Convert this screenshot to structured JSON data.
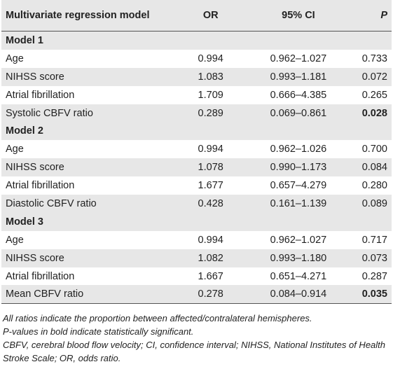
{
  "table": {
    "headers": [
      "Multivariate regression model",
      "OR",
      "95% CI",
      "P"
    ],
    "groups": [
      {
        "title": "Model 1",
        "rows": [
          {
            "label": "Age",
            "or": "0.994",
            "ci": "0.962–1.027",
            "p": "0.733",
            "p_bold": false
          },
          {
            "label": "NIHSS score",
            "or": "1.083",
            "ci": "0.993–1.181",
            "p": "0.072",
            "p_bold": false
          },
          {
            "label": "Atrial fibrillation",
            "or": "1.709",
            "ci": "0.666–4.385",
            "p": "0.265",
            "p_bold": false
          },
          {
            "label": "Systolic CBFV ratio",
            "or": "0.289",
            "ci": "0.069–0.861",
            "p": "0.028",
            "p_bold": true
          }
        ]
      },
      {
        "title": "Model 2",
        "rows": [
          {
            "label": "Age",
            "or": "0.994",
            "ci": "0.962–1.026",
            "p": "0.700",
            "p_bold": false
          },
          {
            "label": "NIHSS score",
            "or": "1.078",
            "ci": "0.990–1.173",
            "p": "0.084",
            "p_bold": false
          },
          {
            "label": "Atrial fibrillation",
            "or": "1.677",
            "ci": "0.657–4.279",
            "p": "0.280",
            "p_bold": false
          },
          {
            "label": "Diastolic CBFV ratio",
            "or": "0.428",
            "ci": "0.161–1.139",
            "p": "0.089",
            "p_bold": false
          }
        ]
      },
      {
        "title": "Model 3",
        "rows": [
          {
            "label": "Age",
            "or": "0.994",
            "ci": "0.962–1.027",
            "p": "0.717",
            "p_bold": false
          },
          {
            "label": "NIHSS score",
            "or": "1.082",
            "ci": "0.993–1.180",
            "p": "0.073",
            "p_bold": false
          },
          {
            "label": "Atrial fibrillation",
            "or": "1.667",
            "ci": "0.651–4.271",
            "p": "0.287",
            "p_bold": false
          },
          {
            "label": "Mean CBFV ratio",
            "or": "0.278",
            "ci": "0.084–0.914",
            "p": "0.035",
            "p_bold": true
          }
        ]
      }
    ]
  },
  "notes": [
    "All ratios indicate the proportion between affected/contralateral hemispheres.",
    "P-values in bold indicate statistically significant.",
    "CBFV, cerebral blood flow velocity; CI, confidence interval; NIHSS, National Institutes of Health Stroke Scale; OR, odds ratio."
  ]
}
